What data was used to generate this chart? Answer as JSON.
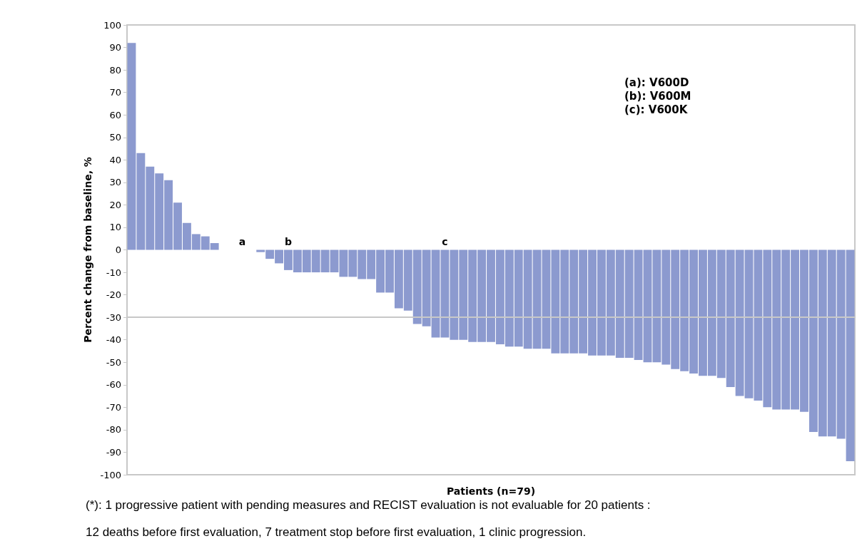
{
  "chart_data": {
    "type": "bar",
    "xlabel": "Patients (n=79)",
    "ylabel": "Percent change from baseline, %",
    "categories": [
      null,
      null,
      null,
      null,
      null,
      null,
      null,
      null,
      null,
      null,
      null,
      null,
      null,
      null,
      null,
      null,
      null,
      null,
      null,
      null,
      null,
      null,
      null,
      null,
      null,
      null,
      null,
      null,
      null,
      null,
      null,
      null,
      null,
      null,
      null,
      null,
      null,
      null,
      null,
      null,
      null,
      null,
      null,
      null,
      null,
      null,
      null,
      null,
      null,
      null,
      null,
      null,
      null,
      null,
      null,
      null,
      null,
      null,
      null,
      null,
      null,
      null,
      null,
      null,
      null,
      null,
      null,
      null,
      null,
      null,
      null,
      null,
      null,
      null,
      null,
      null,
      null,
      null,
      null
    ],
    "values": [
      92,
      43,
      37,
      34,
      31,
      21,
      12,
      7,
      6,
      3,
      0,
      0,
      0,
      0,
      -1,
      -4,
      -6,
      -9,
      -10,
      -10,
      -10,
      -10,
      -10,
      -12,
      -12,
      -13,
      -13,
      -19,
      -19,
      -26,
      -27,
      -33,
      -34,
      -39,
      -39,
      -40,
      -40,
      -41,
      -41,
      -41,
      -42,
      -43,
      -43,
      -44,
      -44,
      -44,
      -46,
      -46,
      -46,
      -46,
      -47,
      -47,
      -47,
      -48,
      -48,
      -49,
      -50,
      -50,
      -51,
      -53,
      -54,
      -55,
      -56,
      -56,
      -57,
      -61,
      -65,
      -66,
      -67,
      -70,
      -71,
      -71,
      -71,
      -72,
      -81,
      -83,
      -83,
      -84,
      -94
    ],
    "value_labels": [
      null,
      null,
      null,
      null,
      null,
      null,
      null,
      null,
      null,
      null,
      null,
      null,
      "a",
      null,
      null,
      null,
      null,
      "b",
      null,
      null,
      null,
      null,
      null,
      null,
      null,
      null,
      null,
      null,
      null,
      null,
      null,
      null,
      null,
      null,
      "c",
      null,
      null,
      null,
      null,
      null,
      null,
      null,
      null,
      null,
      null,
      null,
      null,
      null,
      null,
      null,
      null,
      null,
      null,
      null,
      null,
      null,
      null,
      null,
      null,
      null,
      null,
      null,
      null,
      null,
      null,
      null,
      null,
      null,
      null,
      null,
      null,
      null,
      null,
      null,
      null,
      null,
      null,
      null,
      null
    ],
    "color": "#8c9acf",
    "ylim": [
      -100,
      100
    ],
    "yticks": [
      -100,
      -90,
      -80,
      -70,
      -60,
      -50,
      -40,
      -30,
      -20,
      -10,
      0,
      10,
      20,
      30,
      40,
      50,
      60,
      70,
      80,
      90,
      100
    ],
    "grid": false,
    "tick_labels": "y",
    "ref_lines": [
      {
        "axis": "y",
        "value": -30,
        "color": "#c8c8c8"
      }
    ],
    "annotations": [
      "(a): V600D",
      "(b): V600M",
      "(c): V600K",
      "(*): 1 progressive patient with pending measures and RECIST evaluation is not evaluable for 20 patients :",
      "12 deaths before first evaluation, 7 treatment stop before first evaluation, 1 clinic progression."
    ]
  }
}
